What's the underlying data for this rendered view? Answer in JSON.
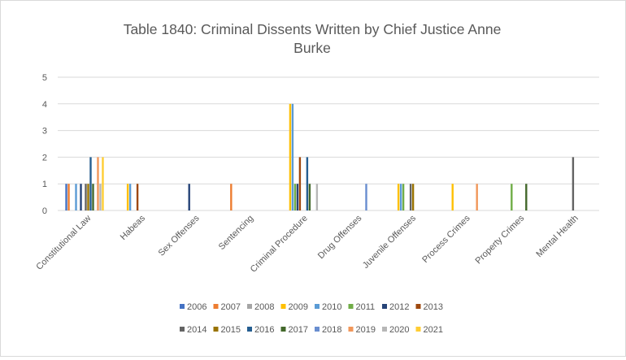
{
  "chart_data": {
    "type": "bar",
    "title": "Table 1840: Criminal Dissents Written by Chief Justice Anne Burke",
    "xlabel": "",
    "ylabel": "",
    "ylim": [
      0,
      5
    ],
    "yticks": [
      0,
      1,
      2,
      3,
      4,
      5
    ],
    "grid": true,
    "legend_position": "bottom",
    "categories": [
      "Constitutional Law",
      "Habeas",
      "Sex Offenses",
      "Sentencing",
      "Criminal Procedure",
      "Drug Offenses",
      "Juvenile Offenses",
      "Process Crimes",
      "Property Crimes",
      "Mental Health"
    ],
    "series": [
      {
        "name": "2006",
        "color": "#4472c4",
        "values": [
          1,
          0,
          0,
          0,
          0,
          0,
          0,
          0,
          0,
          0
        ]
      },
      {
        "name": "2007",
        "color": "#ed7d31",
        "values": [
          1,
          0,
          0,
          1,
          0,
          0,
          0,
          0,
          0,
          0
        ]
      },
      {
        "name": "2008",
        "color": "#a5a5a5",
        "values": [
          0,
          0,
          0,
          0,
          0,
          0,
          0,
          0,
          0,
          0
        ]
      },
      {
        "name": "2009",
        "color": "#ffc000",
        "values": [
          0,
          1,
          0,
          0,
          4,
          0,
          1,
          1,
          0,
          0
        ]
      },
      {
        "name": "2010",
        "color": "#5b9bd5",
        "values": [
          1,
          1,
          0,
          0,
          4,
          0,
          1,
          0,
          0,
          0
        ]
      },
      {
        "name": "2011",
        "color": "#70ad47",
        "values": [
          0,
          0,
          0,
          0,
          1,
          0,
          1,
          0,
          1,
          0
        ]
      },
      {
        "name": "2012",
        "color": "#264478",
        "values": [
          1,
          0,
          1,
          0,
          1,
          0,
          0,
          0,
          0,
          0
        ]
      },
      {
        "name": "2013",
        "color": "#9e480e",
        "values": [
          0,
          1,
          0,
          0,
          2,
          0,
          0,
          0,
          0,
          0
        ]
      },
      {
        "name": "2014",
        "color": "#636363",
        "values": [
          1,
          0,
          0,
          0,
          0,
          0,
          1,
          0,
          0,
          2
        ]
      },
      {
        "name": "2015",
        "color": "#997300",
        "values": [
          1,
          0,
          0,
          0,
          0,
          0,
          1,
          0,
          0,
          0
        ]
      },
      {
        "name": "2016",
        "color": "#255e91",
        "values": [
          2,
          0,
          0,
          0,
          2,
          0,
          0,
          0,
          0,
          0
        ]
      },
      {
        "name": "2017",
        "color": "#43682b",
        "values": [
          1,
          0,
          0,
          0,
          1,
          0,
          0,
          0,
          1,
          0
        ]
      },
      {
        "name": "2018",
        "color": "#698ed0",
        "values": [
          0,
          0,
          0,
          0,
          0,
          1,
          0,
          0,
          0,
          0
        ]
      },
      {
        "name": "2019",
        "color": "#f1975a",
        "values": [
          2,
          0,
          0,
          0,
          0,
          0,
          0,
          1,
          0,
          0
        ]
      },
      {
        "name": "2020",
        "color": "#b7b7b7",
        "values": [
          1,
          0,
          0,
          0,
          1,
          0,
          0,
          0,
          0,
          0
        ]
      },
      {
        "name": "2021",
        "color": "#ffcd33",
        "values": [
          2,
          0,
          0,
          0,
          0,
          0,
          0,
          0,
          0,
          0
        ]
      }
    ]
  }
}
